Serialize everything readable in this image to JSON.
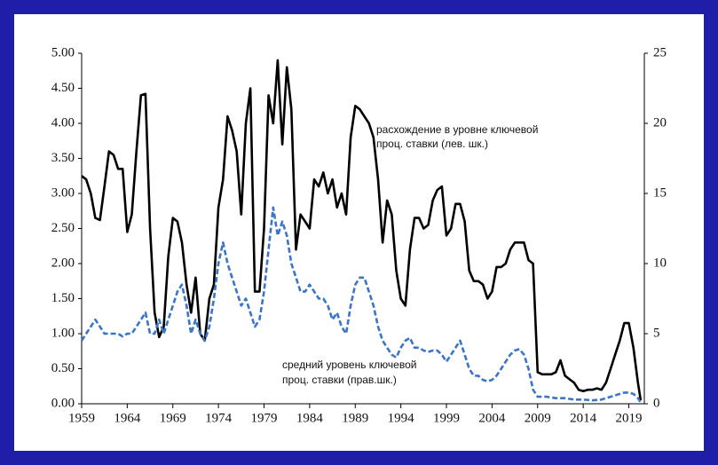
{
  "chart_data": {
    "type": "line",
    "annotations": [
      [
        "расхождение в уровне ключевой",
        "проц. ставки (лев. шк.)"
      ],
      [
        "средний уровень ключевой",
        "проц. ставки (прав.шк.)"
      ]
    ],
    "xlim": [
      1959,
      2020.7
    ],
    "xticks": [
      1959,
      1964,
      1969,
      1974,
      1979,
      1984,
      1989,
      1994,
      1999,
      2004,
      2009,
      2014,
      2019
    ],
    "ylim": [
      0,
      5
    ],
    "yticks": [
      {
        "value": 0,
        "label": "0.00"
      },
      {
        "value": 0.5,
        "label": "0.50"
      },
      {
        "value": 1,
        "label": "1.00"
      },
      {
        "value": 1.5,
        "label": "1.50"
      },
      {
        "value": 2,
        "label": "2.00"
      },
      {
        "value": 2.5,
        "label": "2.50"
      },
      {
        "value": 3,
        "label": "3.00"
      },
      {
        "value": 3.5,
        "label": "3.50"
      },
      {
        "value": 4,
        "label": "4.00"
      },
      {
        "value": 4.5,
        "label": "4.50"
      },
      {
        "value": 5,
        "label": "5.00"
      }
    ],
    "y2lim": [
      0,
      25
    ],
    "y2ticks": [
      0,
      5,
      10,
      15,
      20,
      25
    ],
    "series": [
      {
        "color": "#000000",
        "dashed": false,
        "axis": "y",
        "x": [
          1959,
          1959.5,
          1960,
          1960.5,
          1961,
          1961.5,
          1962,
          1962.5,
          1963,
          1963.5,
          1964,
          1964.5,
          1965,
          1965.5,
          1966,
          1966.5,
          1967,
          1967.5,
          1968,
          1968.5,
          1969,
          1969.5,
          1970,
          1970.5,
          1971,
          1971.5,
          1972,
          1972.5,
          1973,
          1973.5,
          1974,
          1974.5,
          1975,
          1975.5,
          1976,
          1976.5,
          1977,
          1977.5,
          1978,
          1978.5,
          1979,
          1979.5,
          1980,
          1980.5,
          1981,
          1981.5,
          1982,
          1982.5,
          1983,
          1983.5,
          1984,
          1984.5,
          1985,
          1985.5,
          1986,
          1986.5,
          1987,
          1987.5,
          1988,
          1988.5,
          1989,
          1989.5,
          1990,
          1990.5,
          1991,
          1991.5,
          1992,
          1992.5,
          1993,
          1993.5,
          1994,
          1994.5,
          1995,
          1995.5,
          1996,
          1996.5,
          1997,
          1997.5,
          1998,
          1998.5,
          1999,
          1999.5,
          2000,
          2000.5,
          2001,
          2001.5,
          2002,
          2002.5,
          2003,
          2003.5,
          2004,
          2004.5,
          2005,
          2005.5,
          2006,
          2006.5,
          2007,
          2007.5,
          2008,
          2008.5,
          2009,
          2009.5,
          2010,
          2010.5,
          2011,
          2011.5,
          2012,
          2012.5,
          2013,
          2013.5,
          2014,
          2014.5,
          2015,
          2015.5,
          2016,
          2016.5,
          2017,
          2017.5,
          2018,
          2018.5,
          2019,
          2019.5,
          2020,
          2020.3
        ],
        "values": [
          3.25,
          3.2,
          3.0,
          2.65,
          2.62,
          3.1,
          3.6,
          3.55,
          3.35,
          3.35,
          2.45,
          2.7,
          3.6,
          4.4,
          4.42,
          2.5,
          1.3,
          0.95,
          1.1,
          2.1,
          2.65,
          2.6,
          2.3,
          1.7,
          1.3,
          1.8,
          1.0,
          0.9,
          1.5,
          1.7,
          2.8,
          3.2,
          4.1,
          3.9,
          3.6,
          2.7,
          4.0,
          4.5,
          1.6,
          1.6,
          2.5,
          4.4,
          4.0,
          4.9,
          3.7,
          4.8,
          4.2,
          2.2,
          2.7,
          2.6,
          2.5,
          3.2,
          3.1,
          3.3,
          3.0,
          3.2,
          2.8,
          3.0,
          2.7,
          3.8,
          4.25,
          4.2,
          4.1,
          4.0,
          3.8,
          3.2,
          2.3,
          2.9,
          2.7,
          1.9,
          1.5,
          1.4,
          2.2,
          2.65,
          2.65,
          2.5,
          2.55,
          2.9,
          3.05,
          3.1,
          2.4,
          2.5,
          2.85,
          2.85,
          2.6,
          1.9,
          1.75,
          1.75,
          1.7,
          1.5,
          1.6,
          1.95,
          1.95,
          2.0,
          2.2,
          2.3,
          2.3,
          2.3,
          2.05,
          2.0,
          0.45,
          0.42,
          0.42,
          0.42,
          0.45,
          0.62,
          0.4,
          0.35,
          0.3,
          0.2,
          0.18,
          0.2,
          0.2,
          0.22,
          0.2,
          0.3,
          0.5,
          0.7,
          0.9,
          1.15,
          1.15,
          0.8,
          0.3,
          0.05
        ]
      },
      {
        "color": "#3a75c8",
        "dashed": true,
        "axis": "y2",
        "x": [
          1959,
          1959.5,
          1960,
          1960.5,
          1961,
          1961.5,
          1962,
          1962.5,
          1963,
          1963.5,
          1964,
          1964.5,
          1965,
          1965.5,
          1966,
          1966.5,
          1967,
          1967.5,
          1968,
          1968.5,
          1969,
          1969.5,
          1970,
          1970.5,
          1971,
          1971.5,
          1972,
          1972.5,
          1973,
          1973.5,
          1974,
          1974.5,
          1975,
          1975.5,
          1976,
          1976.5,
          1977,
          1977.5,
          1978,
          1978.5,
          1979,
          1979.5,
          1980,
          1980.5,
          1981,
          1981.5,
          1982,
          1982.5,
          1983,
          1983.5,
          1984,
          1984.5,
          1985,
          1985.5,
          1986,
          1986.5,
          1987,
          1987.5,
          1988,
          1988.5,
          1989,
          1989.5,
          1990,
          1990.5,
          1991,
          1991.5,
          1992,
          1992.5,
          1993,
          1993.5,
          1994,
          1994.5,
          1995,
          1995.5,
          1996,
          1996.5,
          1997,
          1997.5,
          1998,
          1998.5,
          1999,
          1999.5,
          2000,
          2000.5,
          2001,
          2001.5,
          2002,
          2002.5,
          2003,
          2003.5,
          2004,
          2004.5,
          2005,
          2005.5,
          2006,
          2006.5,
          2007,
          2007.5,
          2008,
          2008.5,
          2009,
          2010,
          2011,
          2012,
          2013,
          2014,
          2015,
          2016,
          2017,
          2018,
          2018.5,
          2019,
          2019.5,
          2020,
          2020.3
        ],
        "values": [
          4.5,
          5,
          5.5,
          6,
          5.5,
          5,
          5,
          5,
          5,
          4.8,
          5,
          5,
          5.5,
          6,
          6.5,
          5,
          5,
          6,
          5,
          6,
          7,
          8,
          8.5,
          7,
          5,
          6,
          5,
          4.5,
          5.5,
          7.5,
          10,
          11.5,
          10,
          9,
          8,
          7,
          7.5,
          6.5,
          5.5,
          6,
          8,
          11,
          14,
          12,
          13,
          12,
          10,
          9,
          8,
          8,
          8.5,
          8,
          7.5,
          7.5,
          7,
          6,
          6.5,
          5.5,
          5,
          7,
          8.5,
          9,
          9,
          8,
          7,
          5.5,
          4.5,
          4,
          3.5,
          3.3,
          4,
          4.5,
          4.7,
          4,
          4,
          3.8,
          3.7,
          3.8,
          3.8,
          3.5,
          3,
          3.5,
          4,
          4.5,
          3.5,
          2.5,
          2,
          2,
          1.7,
          1.6,
          1.7,
          2,
          2.5,
          3,
          3.5,
          3.8,
          3.9,
          3.5,
          2.5,
          1,
          0.5,
          0.5,
          0.4,
          0.4,
          0.3,
          0.3,
          0.25,
          0.3,
          0.5,
          0.7,
          0.8,
          0.8,
          0.7,
          0.4,
          0.1
        ]
      }
    ]
  }
}
